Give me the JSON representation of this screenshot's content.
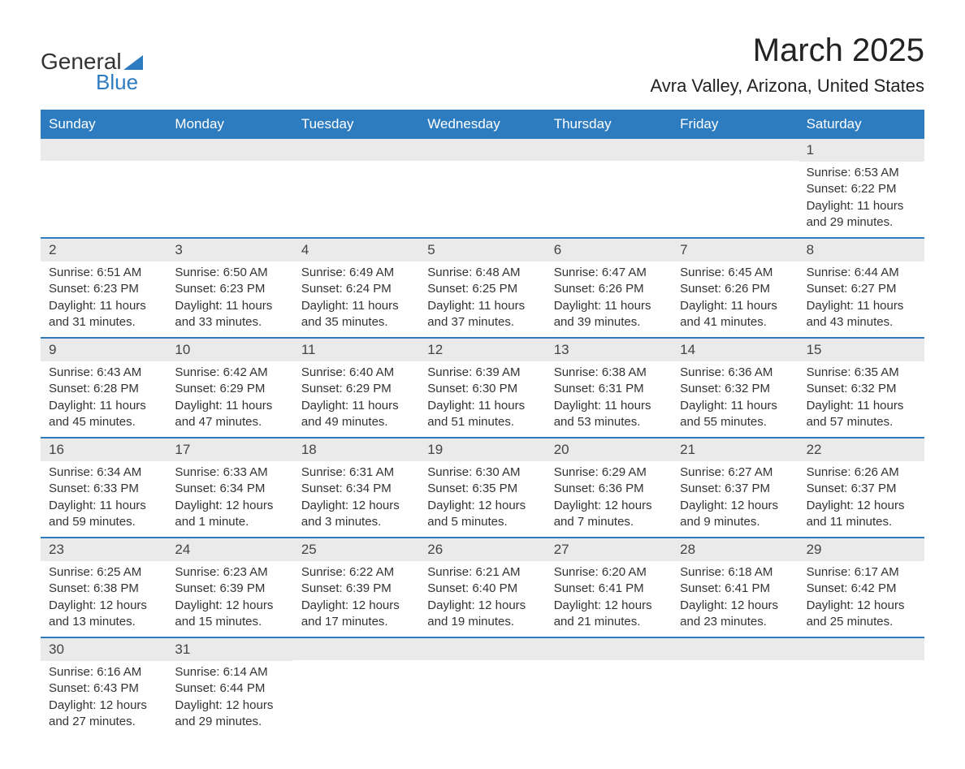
{
  "logo": {
    "text1": "General",
    "text2": "Blue",
    "accent_color": "#2e7cc0"
  },
  "header": {
    "month_title": "March 2025",
    "location": "Avra Valley, Arizona, United States"
  },
  "calendar": {
    "header_bg": "#2e7cc0",
    "header_fg": "#ffffff",
    "number_row_bg": "#eaeaea",
    "border_color": "#2e7cc0",
    "day_names": [
      "Sunday",
      "Monday",
      "Tuesday",
      "Wednesday",
      "Thursday",
      "Friday",
      "Saturday"
    ],
    "weeks": [
      [
        {
          "day": "",
          "lines": []
        },
        {
          "day": "",
          "lines": []
        },
        {
          "day": "",
          "lines": []
        },
        {
          "day": "",
          "lines": []
        },
        {
          "day": "",
          "lines": []
        },
        {
          "day": "",
          "lines": []
        },
        {
          "day": "1",
          "lines": [
            "Sunrise: 6:53 AM",
            "Sunset: 6:22 PM",
            "Daylight: 11 hours and 29 minutes."
          ]
        }
      ],
      [
        {
          "day": "2",
          "lines": [
            "Sunrise: 6:51 AM",
            "Sunset: 6:23 PM",
            "Daylight: 11 hours and 31 minutes."
          ]
        },
        {
          "day": "3",
          "lines": [
            "Sunrise: 6:50 AM",
            "Sunset: 6:23 PM",
            "Daylight: 11 hours and 33 minutes."
          ]
        },
        {
          "day": "4",
          "lines": [
            "Sunrise: 6:49 AM",
            "Sunset: 6:24 PM",
            "Daylight: 11 hours and 35 minutes."
          ]
        },
        {
          "day": "5",
          "lines": [
            "Sunrise: 6:48 AM",
            "Sunset: 6:25 PM",
            "Daylight: 11 hours and 37 minutes."
          ]
        },
        {
          "day": "6",
          "lines": [
            "Sunrise: 6:47 AM",
            "Sunset: 6:26 PM",
            "Daylight: 11 hours and 39 minutes."
          ]
        },
        {
          "day": "7",
          "lines": [
            "Sunrise: 6:45 AM",
            "Sunset: 6:26 PM",
            "Daylight: 11 hours and 41 minutes."
          ]
        },
        {
          "day": "8",
          "lines": [
            "Sunrise: 6:44 AM",
            "Sunset: 6:27 PM",
            "Daylight: 11 hours and 43 minutes."
          ]
        }
      ],
      [
        {
          "day": "9",
          "lines": [
            "Sunrise: 6:43 AM",
            "Sunset: 6:28 PM",
            "Daylight: 11 hours and 45 minutes."
          ]
        },
        {
          "day": "10",
          "lines": [
            "Sunrise: 6:42 AM",
            "Sunset: 6:29 PM",
            "Daylight: 11 hours and 47 minutes."
          ]
        },
        {
          "day": "11",
          "lines": [
            "Sunrise: 6:40 AM",
            "Sunset: 6:29 PM",
            "Daylight: 11 hours and 49 minutes."
          ]
        },
        {
          "day": "12",
          "lines": [
            "Sunrise: 6:39 AM",
            "Sunset: 6:30 PM",
            "Daylight: 11 hours and 51 minutes."
          ]
        },
        {
          "day": "13",
          "lines": [
            "Sunrise: 6:38 AM",
            "Sunset: 6:31 PM",
            "Daylight: 11 hours and 53 minutes."
          ]
        },
        {
          "day": "14",
          "lines": [
            "Sunrise: 6:36 AM",
            "Sunset: 6:32 PM",
            "Daylight: 11 hours and 55 minutes."
          ]
        },
        {
          "day": "15",
          "lines": [
            "Sunrise: 6:35 AM",
            "Sunset: 6:32 PM",
            "Daylight: 11 hours and 57 minutes."
          ]
        }
      ],
      [
        {
          "day": "16",
          "lines": [
            "Sunrise: 6:34 AM",
            "Sunset: 6:33 PM",
            "Daylight: 11 hours and 59 minutes."
          ]
        },
        {
          "day": "17",
          "lines": [
            "Sunrise: 6:33 AM",
            "Sunset: 6:34 PM",
            "Daylight: 12 hours and 1 minute."
          ]
        },
        {
          "day": "18",
          "lines": [
            "Sunrise: 6:31 AM",
            "Sunset: 6:34 PM",
            "Daylight: 12 hours and 3 minutes."
          ]
        },
        {
          "day": "19",
          "lines": [
            "Sunrise: 6:30 AM",
            "Sunset: 6:35 PM",
            "Daylight: 12 hours and 5 minutes."
          ]
        },
        {
          "day": "20",
          "lines": [
            "Sunrise: 6:29 AM",
            "Sunset: 6:36 PM",
            "Daylight: 12 hours and 7 minutes."
          ]
        },
        {
          "day": "21",
          "lines": [
            "Sunrise: 6:27 AM",
            "Sunset: 6:37 PM",
            "Daylight: 12 hours and 9 minutes."
          ]
        },
        {
          "day": "22",
          "lines": [
            "Sunrise: 6:26 AM",
            "Sunset: 6:37 PM",
            "Daylight: 12 hours and 11 minutes."
          ]
        }
      ],
      [
        {
          "day": "23",
          "lines": [
            "Sunrise: 6:25 AM",
            "Sunset: 6:38 PM",
            "Daylight: 12 hours and 13 minutes."
          ]
        },
        {
          "day": "24",
          "lines": [
            "Sunrise: 6:23 AM",
            "Sunset: 6:39 PM",
            "Daylight: 12 hours and 15 minutes."
          ]
        },
        {
          "day": "25",
          "lines": [
            "Sunrise: 6:22 AM",
            "Sunset: 6:39 PM",
            "Daylight: 12 hours and 17 minutes."
          ]
        },
        {
          "day": "26",
          "lines": [
            "Sunrise: 6:21 AM",
            "Sunset: 6:40 PM",
            "Daylight: 12 hours and 19 minutes."
          ]
        },
        {
          "day": "27",
          "lines": [
            "Sunrise: 6:20 AM",
            "Sunset: 6:41 PM",
            "Daylight: 12 hours and 21 minutes."
          ]
        },
        {
          "day": "28",
          "lines": [
            "Sunrise: 6:18 AM",
            "Sunset: 6:41 PM",
            "Daylight: 12 hours and 23 minutes."
          ]
        },
        {
          "day": "29",
          "lines": [
            "Sunrise: 6:17 AM",
            "Sunset: 6:42 PM",
            "Daylight: 12 hours and 25 minutes."
          ]
        }
      ],
      [
        {
          "day": "30",
          "lines": [
            "Sunrise: 6:16 AM",
            "Sunset: 6:43 PM",
            "Daylight: 12 hours and 27 minutes."
          ]
        },
        {
          "day": "31",
          "lines": [
            "Sunrise: 6:14 AM",
            "Sunset: 6:44 PM",
            "Daylight: 12 hours and 29 minutes."
          ]
        },
        {
          "day": "",
          "lines": []
        },
        {
          "day": "",
          "lines": []
        },
        {
          "day": "",
          "lines": []
        },
        {
          "day": "",
          "lines": []
        },
        {
          "day": "",
          "lines": []
        }
      ]
    ]
  }
}
